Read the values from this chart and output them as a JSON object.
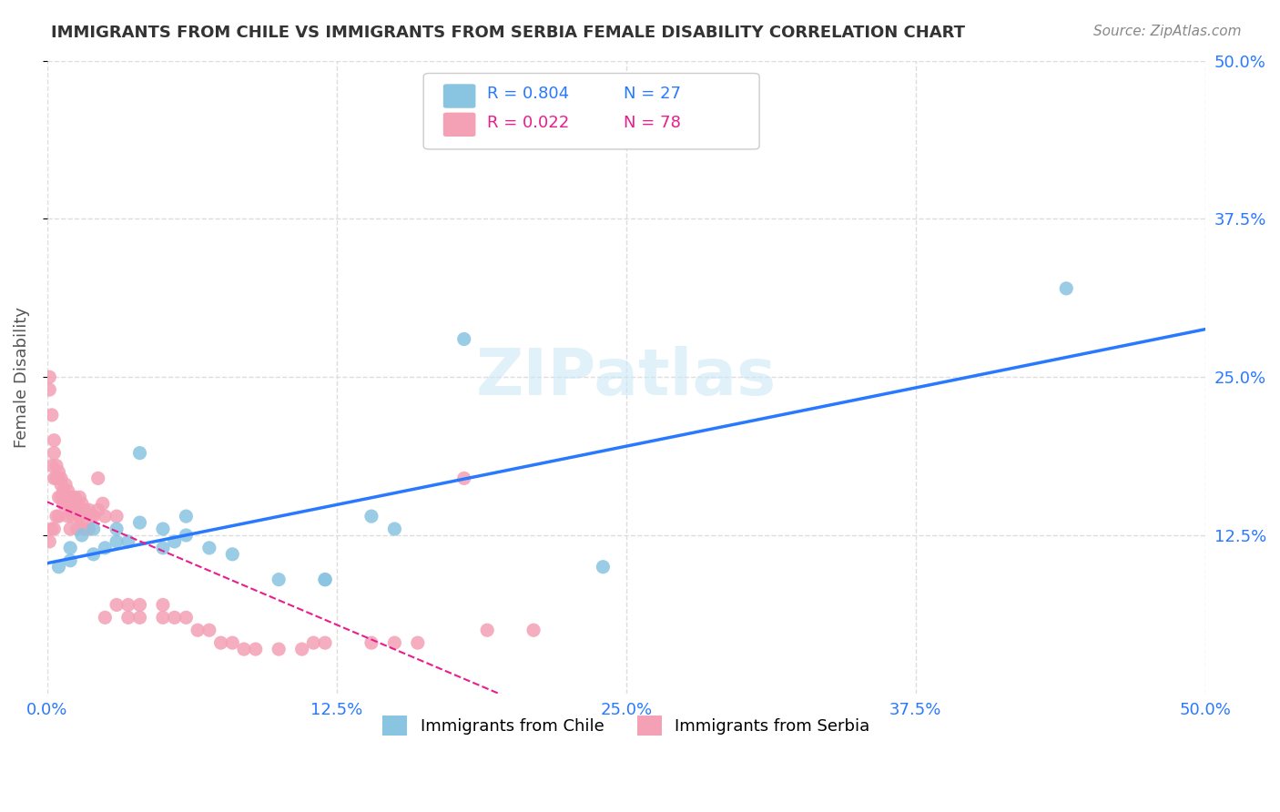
{
  "title": "IMMIGRANTS FROM CHILE VS IMMIGRANTS FROM SERBIA FEMALE DISABILITY CORRELATION CHART",
  "source": "Source: ZipAtlas.com",
  "ylabel": "Female Disability",
  "xlim": [
    0.0,
    0.5
  ],
  "ylim": [
    0.0,
    0.5
  ],
  "xtick_labels": [
    "0.0%",
    "12.5%",
    "25.0%",
    "37.5%",
    "50.0%"
  ],
  "xtick_vals": [
    0.0,
    0.125,
    0.25,
    0.375,
    0.5
  ],
  "ytick_labels": [
    "12.5%",
    "25.0%",
    "37.5%",
    "50.0%"
  ],
  "ytick_vals": [
    0.125,
    0.25,
    0.375,
    0.5
  ],
  "grid_color": "#dddddd",
  "background_color": "#ffffff",
  "chile_color": "#89C4E1",
  "serbia_color": "#F4A0B5",
  "chile_line_color": "#2979FF",
  "serbia_line_color": "#E91E8C",
  "chile_R": 0.804,
  "chile_N": 27,
  "serbia_R": 0.022,
  "serbia_N": 78,
  "chile_x": [
    0.005,
    0.01,
    0.01,
    0.015,
    0.02,
    0.02,
    0.025,
    0.03,
    0.03,
    0.035,
    0.04,
    0.04,
    0.05,
    0.05,
    0.055,
    0.06,
    0.06,
    0.07,
    0.08,
    0.1,
    0.12,
    0.12,
    0.14,
    0.15,
    0.18,
    0.24,
    0.44
  ],
  "chile_y": [
    0.1,
    0.115,
    0.105,
    0.125,
    0.13,
    0.11,
    0.115,
    0.13,
    0.12,
    0.12,
    0.19,
    0.135,
    0.13,
    0.115,
    0.12,
    0.14,
    0.125,
    0.115,
    0.11,
    0.09,
    0.09,
    0.09,
    0.14,
    0.13,
    0.28,
    0.1,
    0.32
  ],
  "serbia_x": [
    0.001,
    0.001,
    0.001,
    0.002,
    0.002,
    0.002,
    0.003,
    0.003,
    0.003,
    0.003,
    0.004,
    0.004,
    0.004,
    0.005,
    0.005,
    0.005,
    0.005,
    0.006,
    0.006,
    0.006,
    0.007,
    0.007,
    0.008,
    0.008,
    0.009,
    0.009,
    0.009,
    0.01,
    0.01,
    0.01,
    0.01,
    0.011,
    0.011,
    0.012,
    0.012,
    0.013,
    0.013,
    0.014,
    0.014,
    0.015,
    0.015,
    0.016,
    0.016,
    0.018,
    0.018,
    0.019,
    0.02,
    0.022,
    0.022,
    0.024,
    0.025,
    0.025,
    0.03,
    0.03,
    0.035,
    0.035,
    0.04,
    0.04,
    0.05,
    0.05,
    0.055,
    0.06,
    0.065,
    0.07,
    0.075,
    0.08,
    0.085,
    0.09,
    0.1,
    0.11,
    0.115,
    0.12,
    0.14,
    0.15,
    0.16,
    0.18,
    0.19,
    0.21
  ],
  "serbia_y": [
    0.24,
    0.25,
    0.12,
    0.22,
    0.18,
    0.13,
    0.2,
    0.19,
    0.17,
    0.13,
    0.18,
    0.17,
    0.14,
    0.175,
    0.17,
    0.155,
    0.14,
    0.17,
    0.165,
    0.155,
    0.16,
    0.15,
    0.165,
    0.15,
    0.16,
    0.155,
    0.14,
    0.155,
    0.15,
    0.145,
    0.13,
    0.15,
    0.14,
    0.155,
    0.145,
    0.15,
    0.13,
    0.155,
    0.14,
    0.15,
    0.135,
    0.145,
    0.13,
    0.145,
    0.13,
    0.14,
    0.14,
    0.17,
    0.145,
    0.15,
    0.14,
    0.06,
    0.07,
    0.14,
    0.07,
    0.06,
    0.07,
    0.06,
    0.07,
    0.06,
    0.06,
    0.06,
    0.05,
    0.05,
    0.04,
    0.04,
    0.035,
    0.035,
    0.035,
    0.035,
    0.04,
    0.04,
    0.04,
    0.04,
    0.04,
    0.17,
    0.05,
    0.05
  ]
}
